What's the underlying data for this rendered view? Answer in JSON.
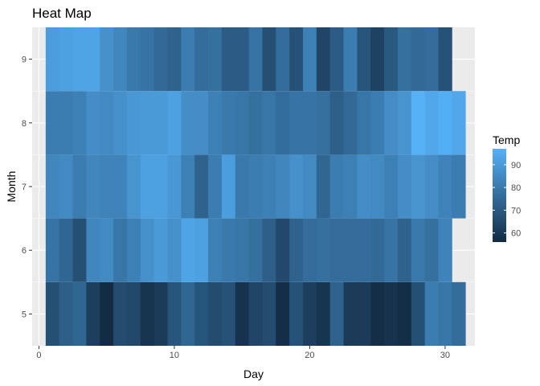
{
  "chart_data": {
    "type": "heatmap",
    "title": "Heat Map",
    "xlabel": "Day",
    "ylabel": "Month",
    "xlim": [
      -0.5,
      32.2
    ],
    "ylim": [
      4.5,
      9.5
    ],
    "x_ticks": [
      0,
      10,
      20,
      30
    ],
    "y_ticks": [
      5,
      6,
      7,
      8,
      9
    ],
    "grid": true,
    "legend": {
      "title": "Temp",
      "position": "right",
      "range": [
        56,
        97
      ],
      "ticks": [
        60,
        70,
        80,
        90
      ],
      "color_low": "#132B43",
      "color_high": "#56B1F7"
    },
    "months": [
      5,
      6,
      7,
      8,
      9
    ],
    "values": {
      "5": [
        67,
        72,
        74,
        62,
        56,
        66,
        65,
        59,
        61,
        69,
        74,
        69,
        66,
        68,
        58,
        64,
        66,
        57,
        68,
        62,
        59,
        73,
        61,
        61,
        57,
        58,
        57,
        67,
        81,
        79,
        76
      ],
      "6": [
        78,
        74,
        67,
        84,
        85,
        79,
        82,
        87,
        90,
        87,
        93,
        92,
        82,
        80,
        79,
        77,
        72,
        65,
        73,
        76,
        77,
        76,
        76,
        76,
        75,
        78,
        73,
        80,
        77,
        83
      ],
      "7": [
        84,
        85,
        81,
        84,
        83,
        83,
        88,
        92,
        92,
        89,
        82,
        73,
        81,
        91,
        80,
        81,
        82,
        84,
        87,
        85,
        74,
        81,
        82,
        86,
        85,
        82,
        86,
        88,
        86,
        83,
        81
      ],
      "8": [
        81,
        81,
        82,
        86,
        85,
        87,
        89,
        90,
        90,
        92,
        86,
        86,
        82,
        80,
        79,
        77,
        79,
        76,
        78,
        78,
        77,
        72,
        75,
        79,
        81,
        86,
        88,
        97,
        94,
        96,
        94
      ],
      "9": [
        91,
        92,
        93,
        93,
        87,
        84,
        80,
        78,
        75,
        73,
        81,
        76,
        77,
        71,
        71,
        78,
        67,
        76,
        68,
        82,
        64,
        71,
        81,
        69,
        63,
        70,
        77,
        75,
        76,
        68
      ]
    }
  }
}
